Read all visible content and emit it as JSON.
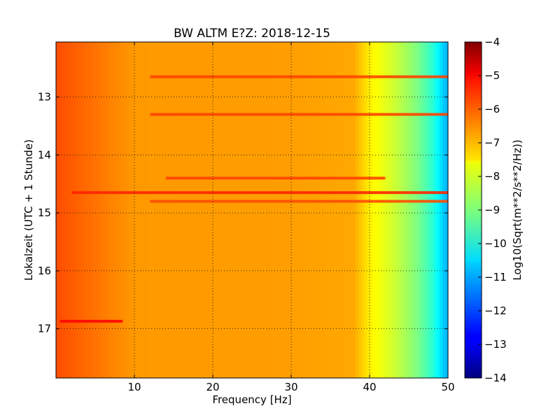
{
  "chart_data": {
    "type": "heatmap",
    "title": "BW ALTM E?Z: 2018-12-15",
    "xlabel": "Frequency [Hz]",
    "ylabel": "Lokalzeit (UTC + 1 Stunde)",
    "xlim": [
      0,
      50
    ],
    "ylim": [
      12.05,
      17.85
    ],
    "y_inverted": true,
    "grid": true,
    "x_ticks": [
      10,
      20,
      30,
      40,
      50
    ],
    "x_tick_labels": [
      "10",
      "20",
      "30",
      "40",
      "50"
    ],
    "y_ticks": [
      13,
      14,
      15,
      16,
      17
    ],
    "y_tick_labels": [
      "13",
      "14",
      "15",
      "16",
      "17"
    ],
    "colormap": "jet",
    "colorbar": {
      "label": "Log10(Sqrt(m**2/s**2/Hz))",
      "vmin": -14,
      "vmax": -4,
      "ticks": [
        -4,
        -5,
        -6,
        -7,
        -8,
        -9,
        -10,
        -11,
        -12,
        -13,
        -14
      ],
      "tick_labels": [
        "−4",
        "−5",
        "−6",
        "−7",
        "−8",
        "−9",
        "−10",
        "−11",
        "−12",
        "−13",
        "−14"
      ]
    },
    "spectrum_profile": [
      {
        "f": 0,
        "v": -6.0
      },
      {
        "f": 4,
        "v": -6.3
      },
      {
        "f": 10,
        "v": -6.75
      },
      {
        "f": 30,
        "v": -6.8
      },
      {
        "f": 38,
        "v": -6.9
      },
      {
        "f": 40,
        "v": -7.6
      },
      {
        "f": 43,
        "v": -8.2
      },
      {
        "f": 46,
        "v": -9.0
      },
      {
        "f": 48,
        "v": -9.8
      },
      {
        "f": 49.5,
        "v": -10.8
      },
      {
        "f": 50,
        "v": -11.0
      }
    ],
    "bands": [
      {
        "time": 12.65,
        "f_start": 12,
        "f_end": 50,
        "v": -5.9
      },
      {
        "time": 13.3,
        "f_start": 12,
        "f_end": 50,
        "v": -5.9
      },
      {
        "time": 14.4,
        "f_start": 14,
        "f_end": 42,
        "v": -5.9
      },
      {
        "time": 14.65,
        "f_start": 2,
        "f_end": 50,
        "v": -5.6
      },
      {
        "time": 14.8,
        "f_start": 12,
        "f_end": 50,
        "v": -6.0
      },
      {
        "time": 16.87,
        "f_start": 0.5,
        "f_end": 8.5,
        "v": -5.3
      }
    ]
  }
}
